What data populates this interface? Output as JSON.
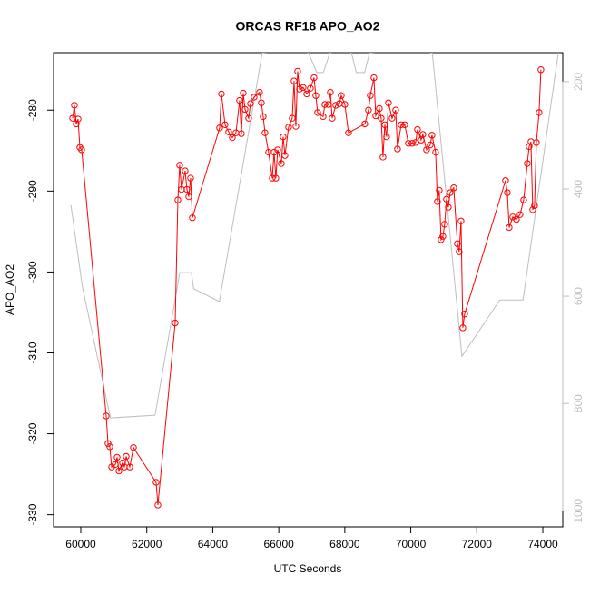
{
  "chart_data": {
    "type": "line",
    "title": "ORCAS RF18 APO_AO2",
    "xlabel": "UTC Seconds",
    "ylabel": "APO_AO2",
    "xlim": [
      59175,
      74605
    ],
    "xticks": [
      60000,
      62000,
      64000,
      66000,
      68000,
      70000,
      72000,
      74000
    ],
    "ylim": [
      -331.5,
      -272.9
    ],
    "yticks": [
      -330,
      -320,
      -310,
      -300,
      -290,
      -280
    ],
    "y2lim": [
      1030,
      146
    ],
    "y2ticks": [
      200,
      400,
      600,
      800,
      1000
    ],
    "series": [
      {
        "color": "#ff0000",
        "markers": true,
        "x": [
          59752,
          59807,
          59862,
          59917,
          59972,
          60027,
          60770,
          60825,
          60880,
          60935,
          61045,
          61100,
          61155,
          61265,
          61320,
          61375,
          61485,
          61595,
          62282,
          62337,
          62860,
          62942,
          62997,
          63052,
          63162,
          63217,
          63272,
          63327,
          63382,
          64207,
          64262,
          64372,
          64482,
          64592,
          64702,
          64812,
          64867,
          64922,
          64977,
          65087,
          65142,
          65252,
          65417,
          65472,
          65527,
          65582,
          65692,
          65802,
          65857,
          65912,
          65967,
          66077,
          66132,
          66187,
          66297,
          66407,
          66462,
          66517,
          66572,
          66627,
          66737,
          66847,
          66957,
          67067,
          67122,
          67177,
          67342,
          67397,
          67507,
          67562,
          67617,
          67727,
          67837,
          67892,
          68002,
          68112,
          68607,
          68717,
          68772,
          68882,
          68937,
          69047,
          69102,
          69157,
          69212,
          69267,
          69322,
          69432,
          69542,
          69597,
          69707,
          69817,
          69927,
          70037,
          70147,
          70202,
          70312,
          70367,
          70477,
          70587,
          70642,
          70752,
          70807,
          70862,
          70917,
          70972,
          71027,
          71082,
          71137,
          71192,
          71302,
          71412,
          71467,
          71522,
          71577,
          71632,
          72870,
          72925,
          72980,
          73090,
          73200,
          73310,
          73420,
          73530,
          73585,
          73640,
          73695,
          73750,
          73805,
          73887,
          73942
        ],
        "values": [
          -281.0,
          -279.4,
          -281.7,
          -281.1,
          -284.6,
          -284.9,
          -317.8,
          -321.2,
          -321.6,
          -324.1,
          -323.8,
          -322.9,
          -324.6,
          -323.6,
          -324.1,
          -322.8,
          -324.1,
          -321.7,
          -326.0,
          -328.8,
          -306.3,
          -291.1,
          -286.8,
          -289.8,
          -287.5,
          -289.8,
          -290.7,
          -288.4,
          -293.3,
          -282.2,
          -278.0,
          -281.8,
          -282.7,
          -283.4,
          -282.8,
          -278.8,
          -282.9,
          -277.9,
          -279.9,
          -281.0,
          -279.2,
          -278.4,
          -277.8,
          -279.1,
          -280.8,
          -282.8,
          -285.2,
          -288.4,
          -285.2,
          -288.4,
          -284.9,
          -286.6,
          -283.3,
          -285.6,
          -282.1,
          -281.0,
          -276.4,
          -282.0,
          -275.2,
          -277.4,
          -277.2,
          -278.0,
          -277.3,
          -276.0,
          -278.2,
          -280.3,
          -280.8,
          -279.3,
          -279.3,
          -277.8,
          -281.0,
          -279.4,
          -279.2,
          -278.2,
          -279.3,
          -282.8,
          -281.7,
          -280.0,
          -278.2,
          -276.0,
          -280.7,
          -279.8,
          -281.0,
          -285.8,
          -281.8,
          -283.3,
          -279.1,
          -281.0,
          -280.0,
          -284.8,
          -281.8,
          -281.8,
          -284.1,
          -284.1,
          -284.0,
          -282.4,
          -283.7,
          -283.0,
          -284.9,
          -284.3,
          -283.1,
          -285.2,
          -291.3,
          -289.9,
          -296.0,
          -295.6,
          -294.1,
          -291.0,
          -292.0,
          -290.2,
          -289.6,
          -296.5,
          -297.5,
          -293.7,
          -306.9,
          -305.2,
          -288.7,
          -290.2,
          -294.5,
          -293.2,
          -293.5,
          -292.9,
          -291.1,
          -286.6,
          -284.5,
          -283.9,
          -292.3,
          -291.8,
          -284.0,
          -280.3,
          -275.0
        ]
      },
      {
        "color": "#bebebe",
        "axis": "y2",
        "markers": false,
        "x": [
          59700,
          60050,
          60900,
          62250,
          63000,
          63350,
          63420,
          64200,
          65500,
          66600,
          66900,
          67150,
          67350,
          67550,
          68000,
          68200,
          68350,
          68600,
          68750,
          70000,
          70650,
          71550,
          72700,
          73400,
          74470
        ],
        "values": [
          430,
          583,
          827,
          822,
          556,
          556,
          586,
          610,
          146,
          140,
          146,
          183,
          183,
          146,
          140,
          146,
          183,
          183,
          146,
          140,
          146,
          712,
          607,
          607,
          146
        ]
      }
    ]
  }
}
